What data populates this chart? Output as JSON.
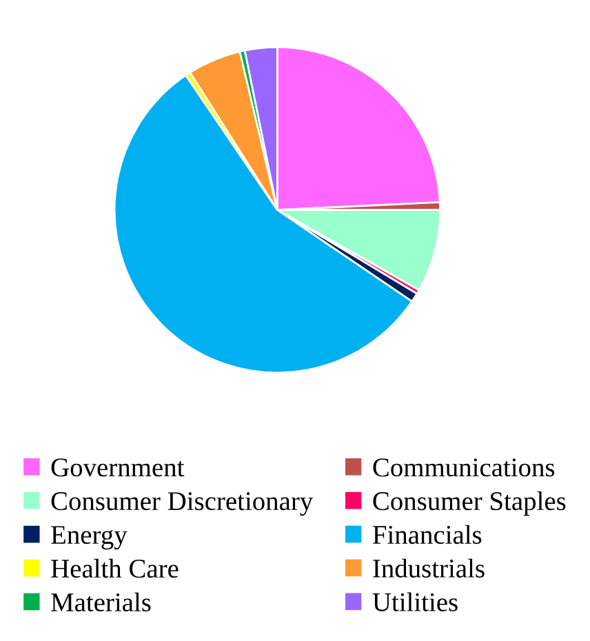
{
  "chart_data": {
    "type": "pie",
    "categories": [
      "Government",
      "Communications",
      "Consumer Discretionary",
      "Consumer Staples",
      "Energy",
      "Financials",
      "Health Care",
      "Industrials",
      "Materials",
      "Utilities"
    ],
    "values": [
      24.25,
      0.75,
      8.2,
      0.4,
      0.9,
      56.0,
      0.5,
      5.3,
      0.5,
      3.2
    ],
    "colors": [
      "#ff66ff",
      "#c0504d",
      "#99ffcc",
      "#ff0066",
      "#002060",
      "#00b0f0",
      "#ffff00",
      "#ff9933",
      "#00b050",
      "#9966ff"
    ],
    "legend": "bottom"
  }
}
